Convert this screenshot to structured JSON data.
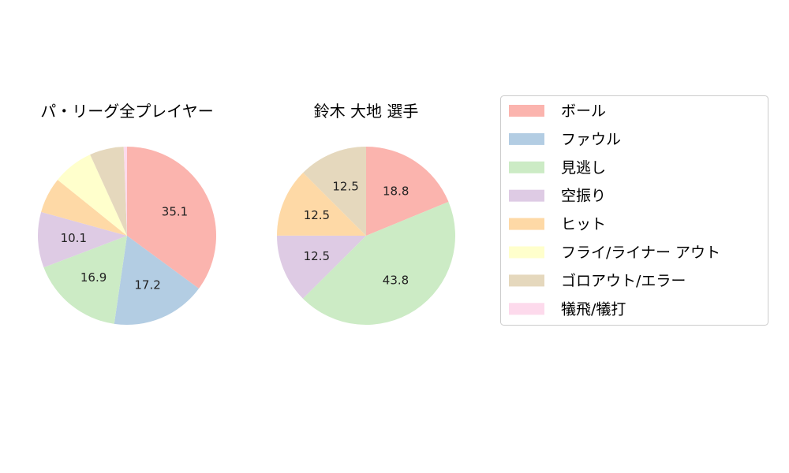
{
  "chart_data": [
    {
      "type": "pie",
      "title": "パ・リーグ全プレイヤー",
      "categories": [
        "ボール",
        "ファウル",
        "見逃し",
        "空振り",
        "ヒット",
        "フライ/ライナー アウト",
        "ゴロアウト/エラー",
        "犠飛/犠打"
      ],
      "values": [
        35.1,
        17.2,
        16.9,
        10.1,
        6.5,
        7.4,
        6.2,
        0.6
      ],
      "data_labels": [
        "35.1",
        "17.2",
        "16.9",
        "10.1",
        "",
        "",
        "",
        ""
      ],
      "start_angle": "top",
      "direction": "clockwise"
    },
    {
      "type": "pie",
      "title": "鈴木 大地  選手",
      "categories": [
        "ボール",
        "ファウル",
        "見逃し",
        "空振り",
        "ヒット",
        "フライ/ライナー アウト",
        "ゴロアウト/エラー",
        "犠飛/犠打"
      ],
      "values": [
        18.8,
        0,
        43.8,
        12.5,
        12.5,
        0,
        12.5,
        0
      ],
      "data_labels": [
        "18.8",
        "",
        "43.8",
        "12.5",
        "12.5",
        "",
        "12.5",
        ""
      ],
      "start_angle": "top",
      "direction": "clockwise"
    }
  ],
  "legend": {
    "placement": "right",
    "items": [
      {
        "label": "ボール",
        "color": "#fbb4ae"
      },
      {
        "label": "ファウル",
        "color": "#b3cde3"
      },
      {
        "label": "見逃し",
        "color": "#ccebc5"
      },
      {
        "label": "空振り",
        "color": "#decbe4"
      },
      {
        "label": "ヒット",
        "color": "#fed9a6"
      },
      {
        "label": "フライ/ライナー アウト",
        "color": "#ffffcc"
      },
      {
        "label": "ゴロアウト/エラー",
        "color": "#e5d8bd"
      },
      {
        "label": "犠飛/犠打",
        "color": "#fddaec"
      }
    ]
  }
}
